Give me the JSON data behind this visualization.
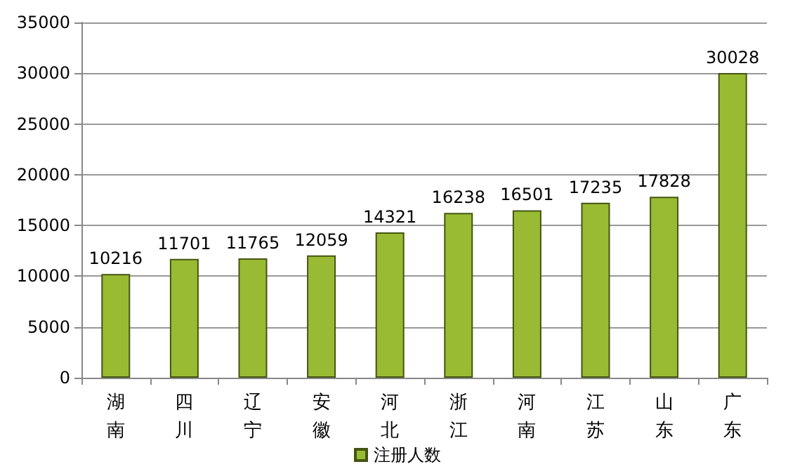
{
  "chart_data": {
    "type": "bar",
    "categories": [
      "湖南",
      "四川",
      "辽宁",
      "安徽",
      "河北",
      "浙江",
      "河南",
      "江苏",
      "山东",
      "广东"
    ],
    "series": [
      {
        "name": "注册人数",
        "color": "#99bb33",
        "values": [
          10216,
          11701,
          11765,
          12059,
          14321,
          16238,
          16501,
          17235,
          17828,
          30028
        ]
      }
    ],
    "ylim": [
      0,
      35000
    ],
    "yticks": [
      0,
      5000,
      10000,
      15000,
      20000,
      25000,
      30000,
      35000
    ],
    "grid": "y",
    "legend": "bottom",
    "data_labels": true
  }
}
